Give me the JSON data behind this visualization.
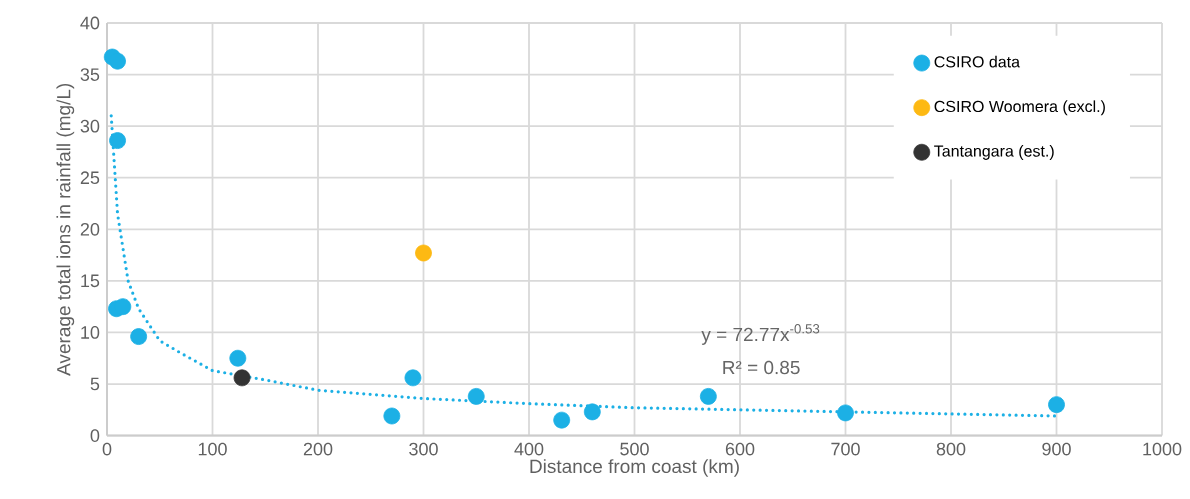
{
  "chart_data": {
    "type": "scatter",
    "xlabel": "Distance from coast (km)",
    "ylabel": "Average total ions in rainfall (mg/L)",
    "xlim": [
      0,
      1000
    ],
    "xticks": [
      0,
      100,
      200,
      300,
      400,
      500,
      600,
      700,
      800,
      900,
      1000
    ],
    "ylim": [
      0,
      40
    ],
    "yticks": [
      0,
      5,
      10,
      15,
      20,
      25,
      30,
      35,
      40
    ],
    "grid": true,
    "legend": "top right",
    "marker": "circle",
    "annotations": [
      "y = 72.77x$^{-0.53}$",
      "R² = 0.85"
    ],
    "series": [
      {
        "name": "CSIRO data",
        "color": "#1cb0e5",
        "x": [
          5,
          10,
          10,
          9,
          15,
          30,
          124,
          270,
          290,
          350,
          431,
          460,
          570,
          700,
          900
        ],
        "values": [
          36.7,
          36.3,
          28.6,
          12.3,
          12.5,
          9.6,
          7.5,
          1.9,
          5.6,
          3.8,
          1.5,
          2.3,
          3.8,
          2.2,
          3.0
        ]
      },
      {
        "name": "CSIRO Woomera (excl.)",
        "color": "#fdb913",
        "x": [
          300
        ],
        "values": [
          17.7
        ]
      },
      {
        "name": "Tantangara (est.)",
        "color": "#333333",
        "x": [
          128
        ],
        "values": [
          5.6
        ]
      },
      {
        "type": "line",
        "line_style": "dotted",
        "marker": "none",
        "color": "#1cb0e5",
        "x": [
          4,
          10,
          20,
          30,
          50,
          70,
          100,
          150,
          200,
          300,
          400,
          500,
          600,
          700,
          800,
          900
        ],
        "values": [
          31,
          21.5,
          15,
          12.3,
          9.2,
          8.0,
          6.3,
          5.4,
          4.4,
          3.6,
          3.1,
          2.7,
          2.5,
          2.3,
          2.1,
          1.9
        ]
      }
    ]
  }
}
